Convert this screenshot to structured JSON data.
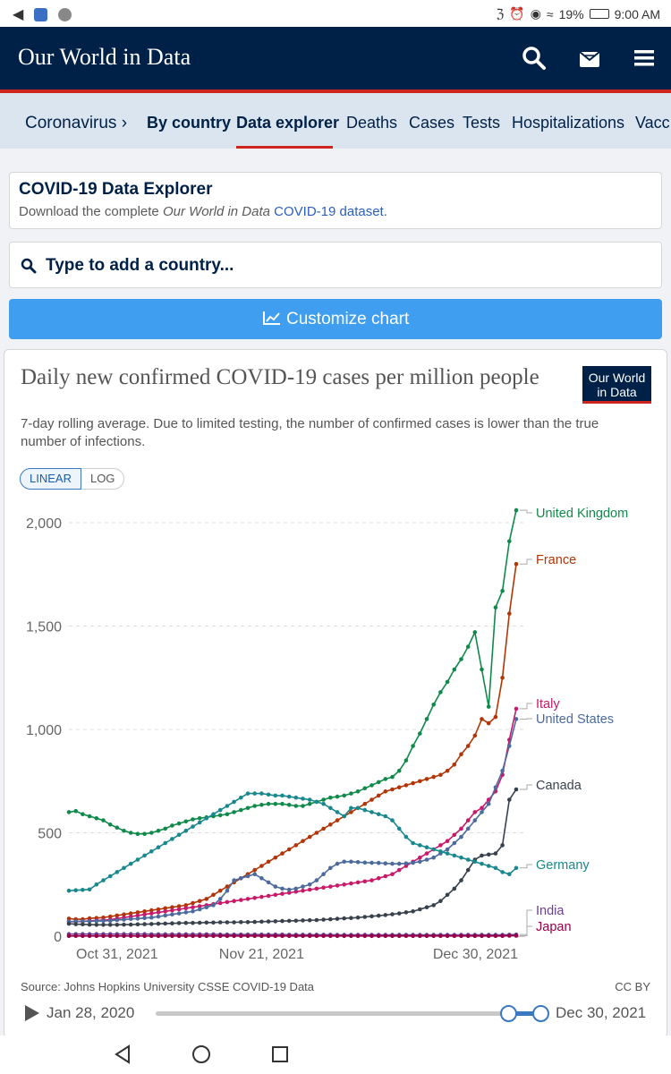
{
  "status_bar": {
    "battery": "19%",
    "time": "9:00 AM"
  },
  "header": {
    "title": "Our World in Data"
  },
  "nav": {
    "items": [
      {
        "label": "Coronavirus ›"
      },
      {
        "label": "By country"
      },
      {
        "label": "Data explorer"
      },
      {
        "label": "Deaths"
      },
      {
        "label": "Cases"
      },
      {
        "label": "Tests"
      },
      {
        "label": "Hospitalizations"
      },
      {
        "label": "Vacc"
      }
    ]
  },
  "explorer_card": {
    "heading": "COVID-19 Data Explorer",
    "sub_prefix": "Download the complete ",
    "sub_italic": "Our World in Data",
    "sub_link": "COVID-19 dataset",
    "sub_suffix": "."
  },
  "search": {
    "placeholder": "Type to add a country..."
  },
  "customize_label": "Customize chart",
  "logo": {
    "line1": "Our World",
    "line2": "in Data"
  },
  "scale_toggle": {
    "linear": "LINEAR",
    "log": "LOG",
    "selected": "linear"
  },
  "source": "Source: Johns Hopkins University CSSE COVID-19 Data",
  "license": "CC BY",
  "timeline": {
    "start": "Jan 28, 2020",
    "end": "Dec 30, 2021"
  },
  "colors": {
    "header_bg": "#002147",
    "accent_red": "#ce261e",
    "button_blue": "#3f9ef0"
  },
  "chart_data": {
    "type": "line",
    "title": "Daily new confirmed COVID-19 cases per million people",
    "subtitle": "7-day rolling average. Due to limited testing, the number of confirmed cases is lower than the true number of infections.",
    "x_tick_labels": [
      "Oct 31, 2021",
      "Nov 21, 2021",
      "Dec 30, 2021"
    ],
    "x_range": [
      "Oct 24, 2021",
      "Dec 30, 2021"
    ],
    "y_ticks": [
      0,
      500,
      1000,
      1500,
      2000
    ],
    "y_tick_labels": [
      "0",
      "500",
      "1,000",
      "1,500",
      "2,000"
    ],
    "ylim": [
      0,
      2100
    ],
    "grid": "horizontal dashed",
    "legend": "right, labels at line ends",
    "series": [
      {
        "name": "United Kingdom",
        "color": "#108a4a",
        "values": [
          600,
          605,
          590,
          580,
          570,
          560,
          540,
          525,
          510,
          500,
          495,
          495,
          500,
          510,
          520,
          535,
          545,
          555,
          565,
          570,
          575,
          580,
          585,
          590,
          600,
          610,
          620,
          630,
          635,
          640,
          640,
          640,
          635,
          630,
          630,
          640,
          650,
          660,
          670,
          675,
          680,
          690,
          700,
          715,
          730,
          745,
          760,
          770,
          800,
          850,
          920,
          980,
          1050,
          1120,
          1180,
          1230,
          1290,
          1340,
          1400,
          1470,
          1290,
          1110,
          1590,
          1670,
          1910,
          2060
        ]
      },
      {
        "name": "France",
        "color": "#b13507",
        "values": [
          85,
          82,
          82,
          86,
          88,
          90,
          95,
          100,
          105,
          110,
          115,
          120,
          125,
          130,
          135,
          140,
          145,
          150,
          160,
          170,
          180,
          200,
          220,
          240,
          260,
          280,
          300,
          320,
          340,
          360,
          380,
          400,
          420,
          440,
          460,
          480,
          500,
          520,
          540,
          560,
          580,
          600,
          620,
          640,
          660,
          680,
          700,
          710,
          720,
          730,
          740,
          750,
          760,
          770,
          780,
          800,
          830,
          880,
          920,
          970,
          1050,
          1030,
          1060,
          1250,
          1560,
          1800
        ]
      },
      {
        "name": "Italy",
        "color": "#c8196b",
        "values": [
          70,
          70,
          72,
          74,
          76,
          78,
          80,
          85,
          90,
          95,
          100,
          105,
          110,
          115,
          120,
          125,
          130,
          135,
          140,
          145,
          150,
          155,
          160,
          165,
          170,
          175,
          180,
          185,
          190,
          195,
          200,
          205,
          210,
          215,
          220,
          225,
          230,
          235,
          240,
          245,
          250,
          255,
          260,
          265,
          270,
          280,
          290,
          300,
          320,
          340,
          360,
          380,
          400,
          420,
          440,
          460,
          490,
          520,
          560,
          600,
          620,
          660,
          700,
          780,
          950,
          1100
        ]
      },
      {
        "name": "United States",
        "color": "#4c6a9c",
        "values": [
          70,
          72,
          72,
          72,
          73,
          74,
          75,
          78,
          80,
          83,
          85,
          88,
          90,
          95,
          100,
          105,
          110,
          115,
          120,
          130,
          140,
          150,
          180,
          220,
          270,
          280,
          290,
          300,
          280,
          260,
          240,
          230,
          225,
          230,
          240,
          250,
          270,
          300,
          330,
          350,
          360,
          360,
          358,
          356,
          355,
          354,
          352,
          350,
          350,
          352,
          355,
          360,
          370,
          380,
          400,
          420,
          450,
          480,
          520,
          560,
          600,
          640,
          720,
          800,
          920,
          1050
        ]
      },
      {
        "name": "Canada",
        "color": "#38424d",
        "values": [
          60,
          58,
          57,
          56,
          55,
          55,
          55,
          55,
          56,
          56,
          57,
          58,
          59,
          60,
          61,
          62,
          63,
          64,
          64,
          65,
          66,
          66,
          67,
          67,
          67,
          68,
          68,
          69,
          70,
          71,
          72,
          73,
          74,
          75,
          76,
          77,
          78,
          80,
          82,
          84,
          86,
          88,
          90,
          93,
          96,
          99,
          102,
          106,
          110,
          115,
          120,
          130,
          140,
          150,
          170,
          200,
          230,
          270,
          320,
          370,
          390,
          395,
          400,
          440,
          660,
          710
        ]
      },
      {
        "name": "Germany",
        "color": "#19888e",
        "values": [
          220,
          222,
          224,
          226,
          250,
          270,
          290,
          310,
          330,
          350,
          370,
          390,
          410,
          430,
          450,
          470,
          490,
          510,
          530,
          550,
          570,
          590,
          610,
          630,
          650,
          670,
          690,
          690,
          690,
          685,
          680,
          680,
          675,
          670,
          665,
          660,
          650,
          640,
          620,
          600,
          580,
          620,
          620,
          610,
          600,
          590,
          580,
          560,
          520,
          480,
          450,
          440,
          430,
          420,
          410,
          400,
          390,
          380,
          370,
          360,
          350,
          340,
          330,
          310,
          300,
          330
        ]
      },
      {
        "name": "India",
        "color": "#6d3e91",
        "values": [
          10,
          10,
          10,
          10,
          10,
          10,
          10,
          10,
          10,
          10,
          10,
          10,
          9,
          9,
          9,
          9,
          9,
          9,
          9,
          9,
          9,
          9,
          8,
          8,
          8,
          8,
          8,
          8,
          8,
          8,
          8,
          8,
          7,
          7,
          7,
          7,
          7,
          7,
          7,
          6,
          6,
          6,
          6,
          6,
          6,
          6,
          6,
          6,
          6,
          6,
          6,
          6,
          6,
          6,
          6,
          6,
          6,
          6,
          6,
          6,
          6,
          6,
          6,
          6,
          7,
          8
        ]
      },
      {
        "name": "Japan",
        "color": "#970046",
        "values": [
          1,
          1,
          1,
          1,
          1,
          1,
          1,
          1,
          1,
          1,
          1,
          1,
          1,
          1,
          1,
          1,
          1,
          1,
          1,
          1,
          1,
          1,
          1,
          1,
          1,
          1,
          1,
          1,
          1,
          1,
          1,
          1,
          1,
          1,
          1,
          1,
          1,
          1,
          1,
          1,
          1,
          1,
          1,
          1,
          1,
          1,
          1,
          1,
          1,
          1,
          1,
          1,
          1,
          1,
          1,
          1,
          1,
          1,
          1,
          1,
          1,
          1,
          1,
          1,
          2,
          2
        ]
      }
    ]
  }
}
